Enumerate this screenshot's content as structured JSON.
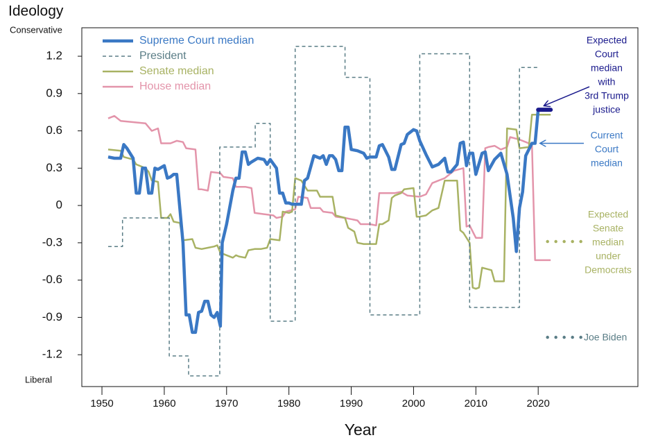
{
  "chart_data": {
    "type": "line",
    "y_title": "Ideology",
    "y_top_label": "Conservative",
    "y_bottom_label": "Liberal",
    "x_title": "Year",
    "xlim": [
      1946.77,
      2036.0
    ],
    "xticks": [
      1950,
      1960,
      1970,
      1980,
      1990,
      2000,
      2010,
      2020
    ],
    "ylim": [
      -1.456,
      1.429
    ],
    "yticks": [
      1.2,
      0.9,
      0.6,
      0.3,
      0,
      -0.3,
      -0.6,
      -0.9,
      -1.2
    ],
    "legend": "upper left",
    "series": [
      {
        "name": "Supreme Court median",
        "color": "#3a78c4",
        "line_style": "solid",
        "x": [
          1951,
          1952,
          1953,
          1953.5,
          1954,
          1955,
          1955.5,
          1956,
          1956.5,
          1957,
          1957.5,
          1958,
          1958.5,
          1959,
          1960,
          1960.5,
          1961,
          1961.5,
          1962,
          1963,
          1963.5,
          1964,
          1964.5,
          1965,
          1965.5,
          1966,
          1966.5,
          1967,
          1967.5,
          1968,
          1968.5,
          1969,
          1969.3,
          1970,
          1971,
          1971.5,
          1972,
          1972.5,
          1973,
          1973.5,
          1974,
          1975,
          1976,
          1976.5,
          1977,
          1978,
          1978.5,
          1979,
          1979.5,
          1980,
          1980.5,
          1981,
          1982,
          1982.5,
          1983,
          1984,
          1985,
          1985.5,
          1986,
          1986.5,
          1987,
          1987.5,
          1988,
          1988.5,
          1989,
          1989.5,
          1990,
          1991,
          1992,
          1992.5,
          1993,
          1994,
          1994.5,
          1995,
          1996,
          1996.5,
          1997,
          1998,
          1998.5,
          1999,
          2000,
          2000.5,
          2001,
          2002,
          2003,
          2004,
          2005,
          2005.5,
          2006,
          2007,
          2007.5,
          2008,
          2008.5,
          2009,
          2009.5,
          2010,
          2011,
          2011.5,
          2012,
          2013,
          2014,
          2015,
          2016,
          2016.5,
          2017,
          2017.5,
          2018,
          2019,
          2019.5,
          2020
        ],
        "values": [
          0.39,
          0.38,
          0.38,
          0.49,
          0.46,
          0.38,
          0.1,
          0.1,
          0.3,
          0.3,
          0.1,
          0.1,
          0.3,
          0.29,
          0.32,
          0.22,
          0.23,
          0.25,
          0.25,
          -0.3,
          -0.88,
          -0.88,
          -1.02,
          -1.02,
          -0.86,
          -0.85,
          -0.77,
          -0.77,
          -0.88,
          -0.9,
          -0.86,
          -0.97,
          -0.3,
          -0.15,
          0.12,
          0.22,
          0.22,
          0.43,
          0.43,
          0.33,
          0.35,
          0.38,
          0.37,
          0.33,
          0.37,
          0.3,
          0.1,
          0.1,
          0.02,
          0.02,
          0.01,
          0.01,
          0.01,
          0.2,
          0.22,
          0.4,
          0.38,
          0.4,
          0.33,
          0.4,
          0.4,
          0.37,
          0.28,
          0.28,
          0.63,
          0.63,
          0.45,
          0.44,
          0.42,
          0.38,
          0.39,
          0.39,
          0.48,
          0.49,
          0.39,
          0.29,
          0.29,
          0.49,
          0.5,
          0.57,
          0.61,
          0.6,
          0.52,
          0.41,
          0.31,
          0.33,
          0.38,
          0.27,
          0.27,
          0.33,
          0.5,
          0.51,
          0.32,
          0.42,
          0.42,
          0.25,
          0.42,
          0.43,
          0.28,
          0.37,
          0.42,
          0.25,
          -0.1,
          -0.37,
          -0.02,
          0.11,
          0.4,
          0.5,
          0.5,
          0.77
        ]
      },
      {
        "name": "President",
        "color": "#5a7d86",
        "line_style": "dashed",
        "x": [
          1951,
          1953.3,
          1953.3,
          1960.8,
          1960.8,
          1963.9,
          1963.9,
          1968.9,
          1968.9,
          1974.6,
          1974.6,
          1977,
          1977,
          1981,
          1981,
          1989,
          1989,
          1993,
          1993,
          2001,
          2001,
          2009,
          2009,
          2017,
          2017,
          2020
        ],
        "values": [
          -0.33,
          -0.33,
          -0.1,
          -0.1,
          -1.21,
          -1.21,
          -1.37,
          -1.37,
          0.47,
          0.47,
          0.66,
          0.66,
          -0.93,
          -0.93,
          1.28,
          1.28,
          1.03,
          1.03,
          -0.88,
          -0.88,
          1.22,
          1.22,
          -0.82,
          -0.82,
          1.11,
          1.11
        ]
      },
      {
        "name": "Senate median",
        "color": "#a8b263",
        "line_style": "solid",
        "x": [
          1951,
          1953,
          1953.5,
          1955,
          1955.5,
          1957,
          1957.5,
          1958,
          1959,
          1959.5,
          1960.5,
          1961,
          1961.5,
          1962.5,
          1963,
          1964.5,
          1965,
          1966,
          1967,
          1968,
          1968.5,
          1969,
          1970,
          1971,
          1971.5,
          1972,
          1973,
          1973.5,
          1974.5,
          1975.5,
          1976.5,
          1977,
          1978.5,
          1979,
          1980,
          1980.5,
          1981,
          1982,
          1983,
          1984.5,
          1985,
          1987,
          1987.5,
          1989,
          1989.5,
          1990.5,
          1991,
          1992,
          1993,
          1994,
          1994.5,
          1995,
          1996,
          1996.5,
          1997,
          1998,
          1998.5,
          2000,
          2000.5,
          2001,
          2002,
          2003,
          2004,
          2005,
          2007,
          2007.5,
          2008,
          2009,
          2009.5,
          2010,
          2010.5,
          2011,
          2012.5,
          2013,
          2014.5,
          2015,
          2016.5,
          2017,
          2018.5,
          2019,
          2022
        ],
        "values": [
          0.45,
          0.44,
          0.39,
          0.37,
          0.33,
          0.3,
          0.27,
          0.2,
          0.19,
          -0.1,
          -0.1,
          -0.07,
          -0.13,
          -0.14,
          -0.28,
          -0.27,
          -0.34,
          -0.35,
          -0.34,
          -0.33,
          -0.32,
          -0.38,
          -0.4,
          -0.42,
          -0.4,
          -0.41,
          -0.42,
          -0.36,
          -0.35,
          -0.35,
          -0.34,
          -0.27,
          -0.28,
          -0.05,
          -0.06,
          -0.05,
          0.22,
          0.2,
          0.12,
          0.12,
          0.07,
          0.07,
          -0.08,
          -0.1,
          -0.18,
          -0.21,
          -0.3,
          -0.31,
          -0.31,
          -0.31,
          -0.15,
          -0.15,
          -0.12,
          0.06,
          0.08,
          0.1,
          0.13,
          0.14,
          -0.09,
          -0.09,
          -0.08,
          -0.04,
          -0.02,
          0.2,
          0.2,
          -0.2,
          -0.22,
          -0.3,
          -0.66,
          -0.67,
          -0.66,
          -0.5,
          -0.52,
          -0.61,
          -0.61,
          0.62,
          0.61,
          0.46,
          0.47,
          0.73,
          0.73
        ]
      },
      {
        "name": "House median",
        "color": "#e394aa",
        "line_style": "solid",
        "x": [
          1951,
          1952,
          1953,
          1955,
          1957,
          1958,
          1959,
          1959.5,
          1961,
          1962,
          1963,
          1963.5,
          1965,
          1965.5,
          1966,
          1967,
          1967.5,
          1969,
          1969.5,
          1971,
          1971.5,
          1973,
          1974,
          1974.5,
          1976,
          1977.5,
          1978,
          1979,
          1979.5,
          1981,
          1981.5,
          1983,
          1983.5,
          1985,
          1985.5,
          1987,
          1987.5,
          1989,
          1990,
          1991,
          1991.5,
          1993,
          1994,
          1994.5,
          1995,
          1997,
          1998,
          1999,
          2001,
          2002,
          2003,
          2004,
          2005,
          2006.5,
          2008,
          2008.5,
          2009,
          2010,
          2011,
          2011.5,
          2012,
          2013,
          2014,
          2015,
          2015.5,
          2017,
          2018,
          2019,
          2019.5,
          2022
        ],
        "values": [
          0.7,
          0.72,
          0.68,
          0.67,
          0.66,
          0.6,
          0.62,
          0.5,
          0.5,
          0.52,
          0.51,
          0.46,
          0.45,
          0.13,
          0.13,
          0.12,
          0.27,
          0.26,
          0.23,
          0.22,
          0.15,
          0.15,
          0.14,
          -0.06,
          -0.07,
          -0.08,
          -0.1,
          -0.09,
          -0.05,
          -0.03,
          0.07,
          0.06,
          -0.02,
          -0.02,
          -0.05,
          -0.06,
          -0.09,
          -0.1,
          -0.11,
          -0.12,
          -0.15,
          -0.15,
          -0.16,
          0.1,
          0.1,
          0.1,
          0.11,
          0.08,
          0.07,
          0.09,
          0.18,
          0.2,
          0.22,
          0.28,
          0.3,
          -0.17,
          -0.16,
          -0.26,
          -0.26,
          0.46,
          0.47,
          0.48,
          0.45,
          0.47,
          0.55,
          0.53,
          0.51,
          0.49,
          -0.44,
          -0.44
        ]
      }
    ],
    "annotations": [
      {
        "text": [
          "Expected",
          "Court",
          "median",
          "with",
          "3rd Trump",
          "justice"
        ],
        "color": "#1a1a8c",
        "line_style": "solid",
        "x": [
          2020,
          2022
        ],
        "y": 0.77
      },
      {
        "text": [
          "Current",
          "Court",
          "median"
        ],
        "color": "#3a78c4"
      },
      {
        "text": [
          "Expected",
          "Senate",
          "median",
          "under",
          "Democrats"
        ],
        "color": "#a8b263",
        "line_style": "dotted",
        "x": [
          2021.5,
          2028
        ],
        "y": -0.29
      },
      {
        "text": [
          "Joe Biden"
        ],
        "color": "#5a7d86",
        "line_style": "dotted",
        "x": [
          2021.5,
          2028
        ],
        "y": -1.06
      }
    ]
  }
}
